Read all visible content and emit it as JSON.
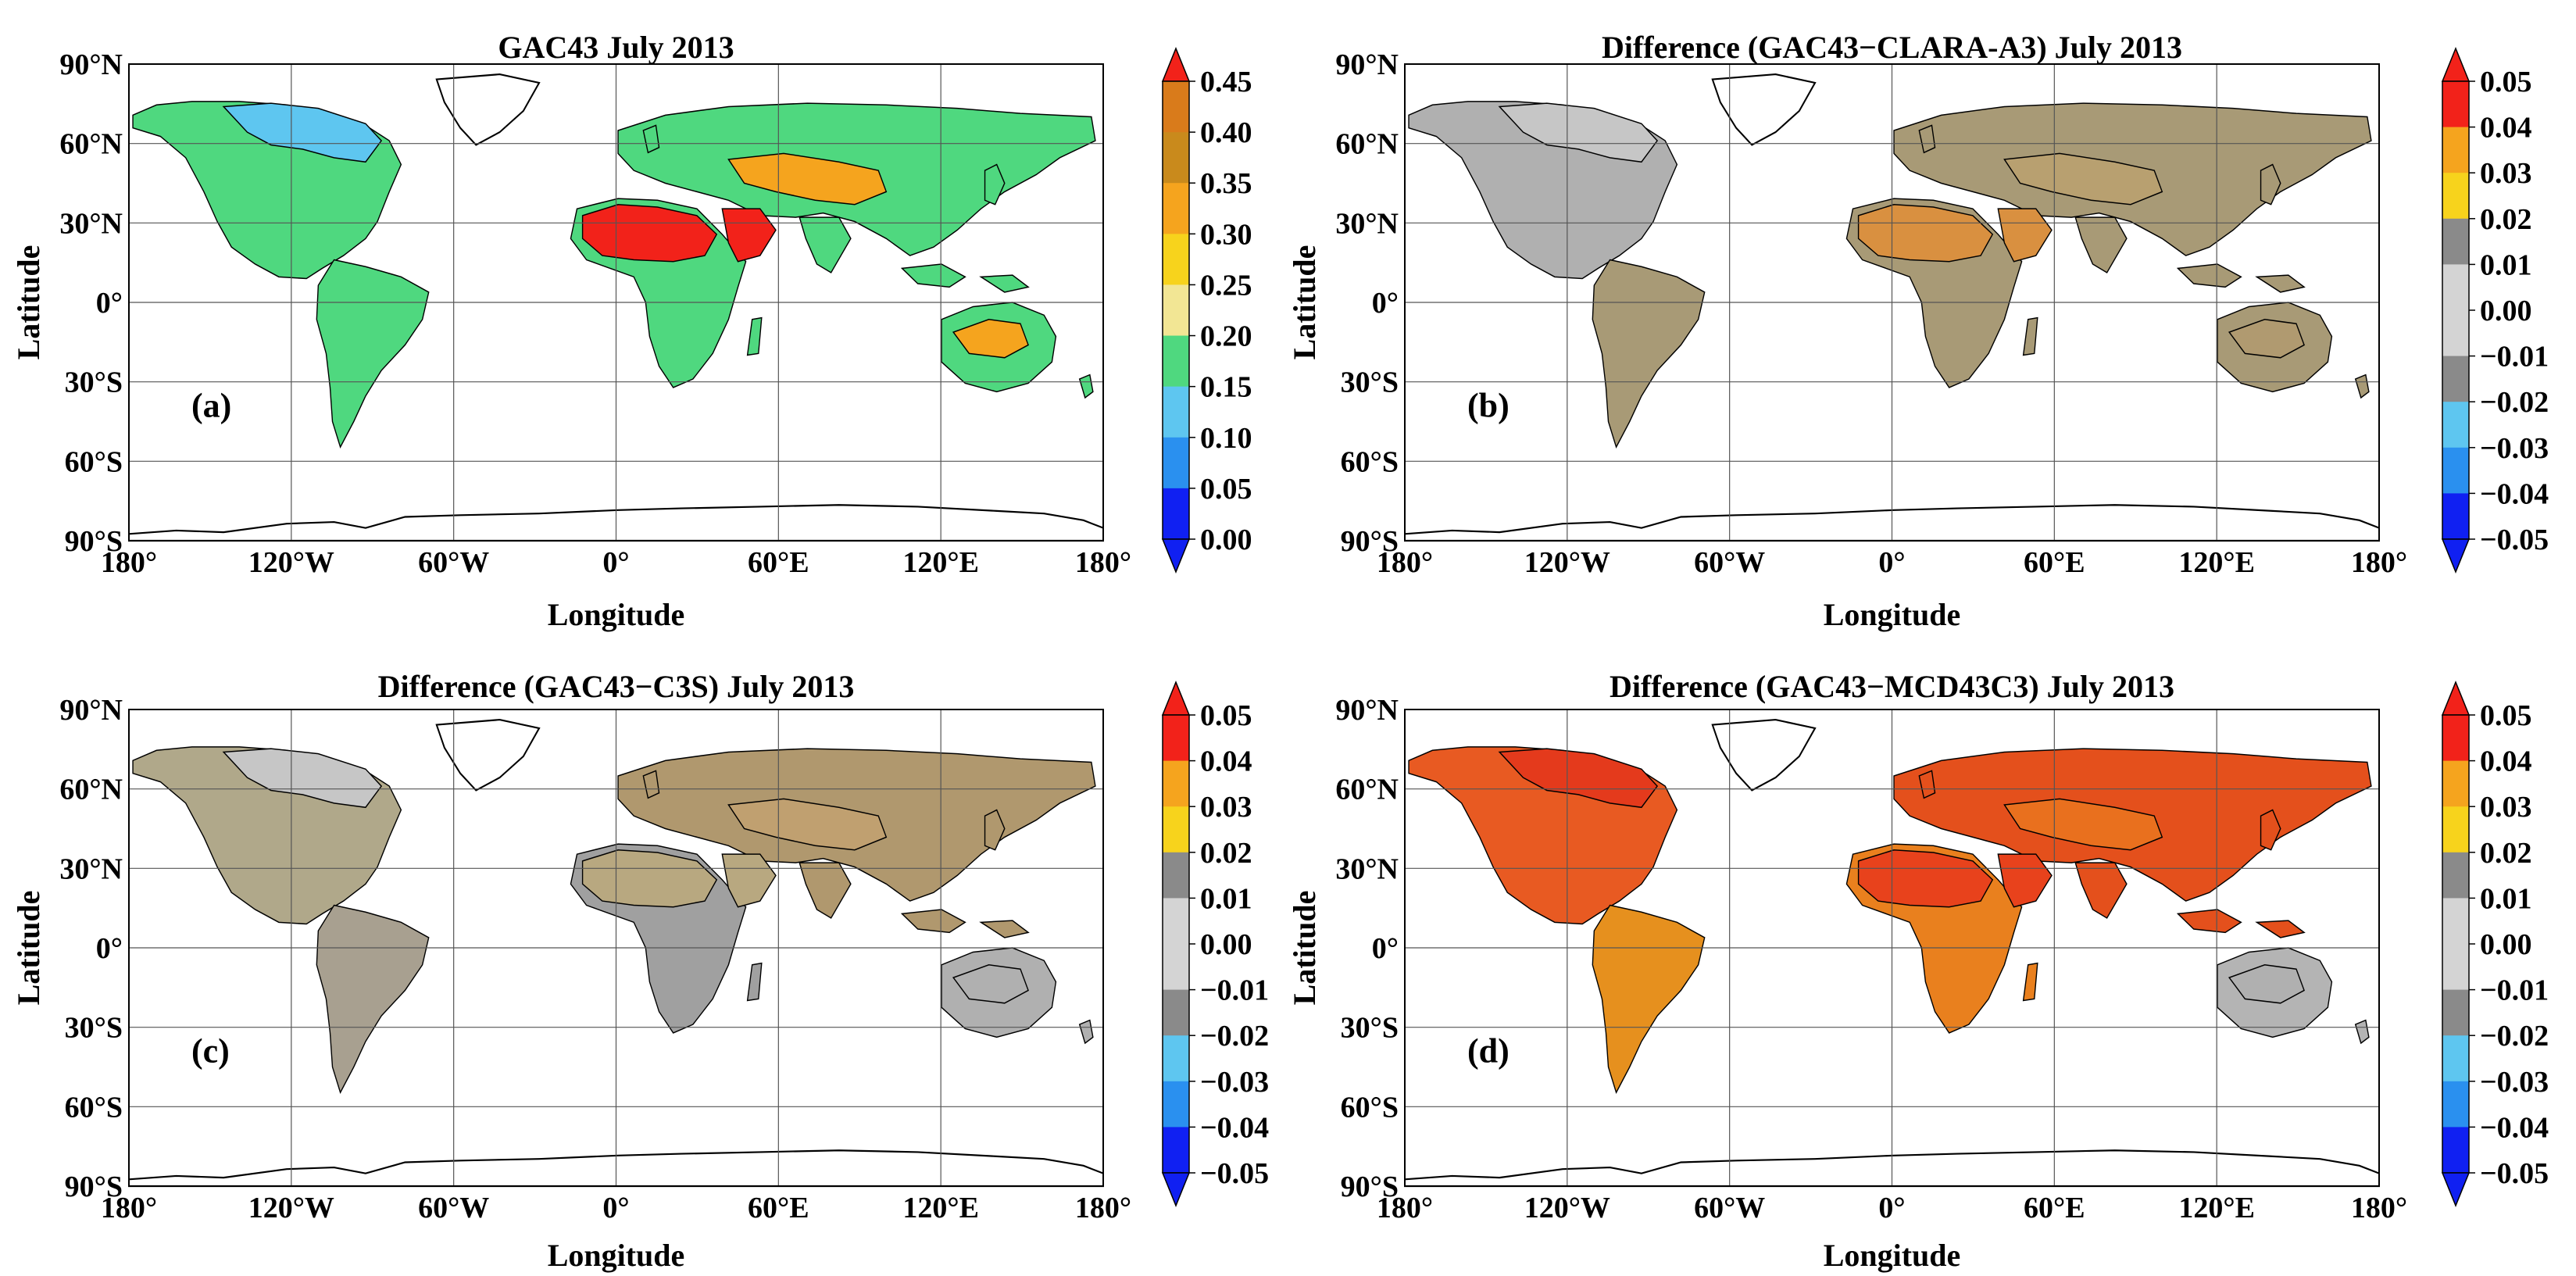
{
  "figure": {
    "panels": [
      {
        "id": "a",
        "title": "GAC43 July 2013",
        "panel_label": "(a)",
        "xlabel": "Longitude",
        "ylabel": "Latitude",
        "x_ticks": [
          "180°",
          "120°W",
          "60°W",
          "0°",
          "60°E",
          "120°E",
          "180°"
        ],
        "y_ticks": [
          "90°N",
          "60°N",
          "30°N",
          "0°",
          "30°S",
          "60°S",
          "90°S"
        ],
        "colorbar": {
          "ticks": [
            "0.45",
            "0.40",
            "0.35",
            "0.30",
            "0.25",
            "0.20",
            "0.15",
            "0.10",
            "0.05",
            "0.00"
          ],
          "colors": [
            "#d97b1b",
            "#c98a1c",
            "#f5a41e",
            "#f7d31c",
            "#f2e694",
            "#4fd87f",
            "#5ec6f0",
            "#2a90ef",
            "#1020f2"
          ],
          "over_color": "#f2221a",
          "under_color": "#1020f2"
        }
      },
      {
        "id": "b",
        "title": "Difference (GAC43−CLARA-A3) July 2013",
        "panel_label": "(b)",
        "xlabel": "Longitude",
        "ylabel": "Latitude",
        "x_ticks": [
          "180°",
          "120°W",
          "60°W",
          "0°",
          "60°E",
          "120°E",
          "180°"
        ],
        "y_ticks": [
          "90°N",
          "60°N",
          "30°N",
          "0°",
          "30°S",
          "60°S",
          "90°S"
        ],
        "colorbar": {
          "ticks": [
            "0.05",
            "0.04",
            "0.03",
            "0.02",
            "0.01",
            "0.00",
            "−0.01",
            "−0.02",
            "−0.03",
            "−0.04",
            "−0.05"
          ],
          "colors": [
            "#f2221a",
            "#f5a41e",
            "#f7d31c",
            "#8a8a8a",
            "#d4d4d4",
            "#d4d4d4",
            "#8a8a8a",
            "#5ec6f0",
            "#2a90ef",
            "#1020f2"
          ],
          "over_color": "#f2221a",
          "under_color": "#1020f2"
        }
      },
      {
        "id": "c",
        "title": "Difference (GAC43−C3S) July 2013",
        "panel_label": "(c)",
        "xlabel": "Longitude",
        "ylabel": "Latitude",
        "x_ticks": [
          "180°",
          "120°W",
          "60°W",
          "0°",
          "60°E",
          "120°E",
          "180°"
        ],
        "y_ticks": [
          "90°N",
          "60°N",
          "30°N",
          "0°",
          "30°S",
          "60°S",
          "90°S"
        ],
        "colorbar": {
          "ticks": [
            "0.05",
            "0.04",
            "0.03",
            "0.02",
            "0.01",
            "0.00",
            "−0.01",
            "−0.02",
            "−0.03",
            "−0.04",
            "−0.05"
          ],
          "colors": [
            "#f2221a",
            "#f5a41e",
            "#f7d31c",
            "#8a8a8a",
            "#d4d4d4",
            "#d4d4d4",
            "#8a8a8a",
            "#5ec6f0",
            "#2a90ef",
            "#1020f2"
          ],
          "over_color": "#f2221a",
          "under_color": "#1020f2"
        }
      },
      {
        "id": "d",
        "title": "Difference (GAC43−MCD43C3) July 2013",
        "panel_label": "(d)",
        "xlabel": "Longitude",
        "ylabel": "Latitude",
        "x_ticks": [
          "180°",
          "120°W",
          "60°W",
          "0°",
          "60°E",
          "120°E",
          "180°"
        ],
        "y_ticks": [
          "90°N",
          "60°N",
          "30°N",
          "0°",
          "30°S",
          "60°S",
          "90°S"
        ],
        "colorbar": {
          "ticks": [
            "0.05",
            "0.04",
            "0.03",
            "0.02",
            "0.01",
            "0.00",
            "−0.01",
            "−0.02",
            "−0.03",
            "−0.04",
            "−0.05"
          ],
          "colors": [
            "#f2221a",
            "#f5a41e",
            "#f7d31c",
            "#8a8a8a",
            "#d4d4d4",
            "#d4d4d4",
            "#8a8a8a",
            "#5ec6f0",
            "#2a90ef",
            "#1020f2"
          ],
          "over_color": "#f2221a",
          "under_color": "#1020f2"
        }
      }
    ],
    "land_fill": {
      "a": {
        "north_america": "#4fd87f",
        "canada": "#5ec6f0",
        "south_america": "#4fd87f",
        "africa": "#4fd87f",
        "sahara": "#f2221a",
        "eurasia": "#4fd87f",
        "central_asia": "#f5a41e",
        "australia": "#4fd87f",
        "australia_interior": "#f5a41e"
      },
      "b": {
        "north_america": "#b0b0b0",
        "canada": "#c6c6c6",
        "south_america": "#a89a76",
        "africa": "#a89a76",
        "sahara": "#d99040",
        "eurasia": "#a89a76",
        "central_asia": "#b8a070",
        "australia": "#a89a76",
        "australia_interior": "#b09a70"
      },
      "c": {
        "north_america": "#b0a88a",
        "canada": "#c6c6c6",
        "south_america": "#a8a090",
        "africa": "#a0a0a0",
        "sahara": "#b8a880",
        "eurasia": "#b0986e",
        "central_asia": "#c0a070",
        "australia": "#b0b0b0",
        "australia_interior": "#b0b0b0"
      },
      "d": {
        "north_america": "#e85a22",
        "canada": "#e43a1c",
        "south_america": "#e6901e",
        "africa": "#e9801e",
        "sahara": "#e8421c",
        "eurasia": "#e4501c",
        "central_asia": "#e9701e",
        "australia": "#b4b4b4",
        "australia_interior": "#b0b0b0"
      }
    }
  }
}
